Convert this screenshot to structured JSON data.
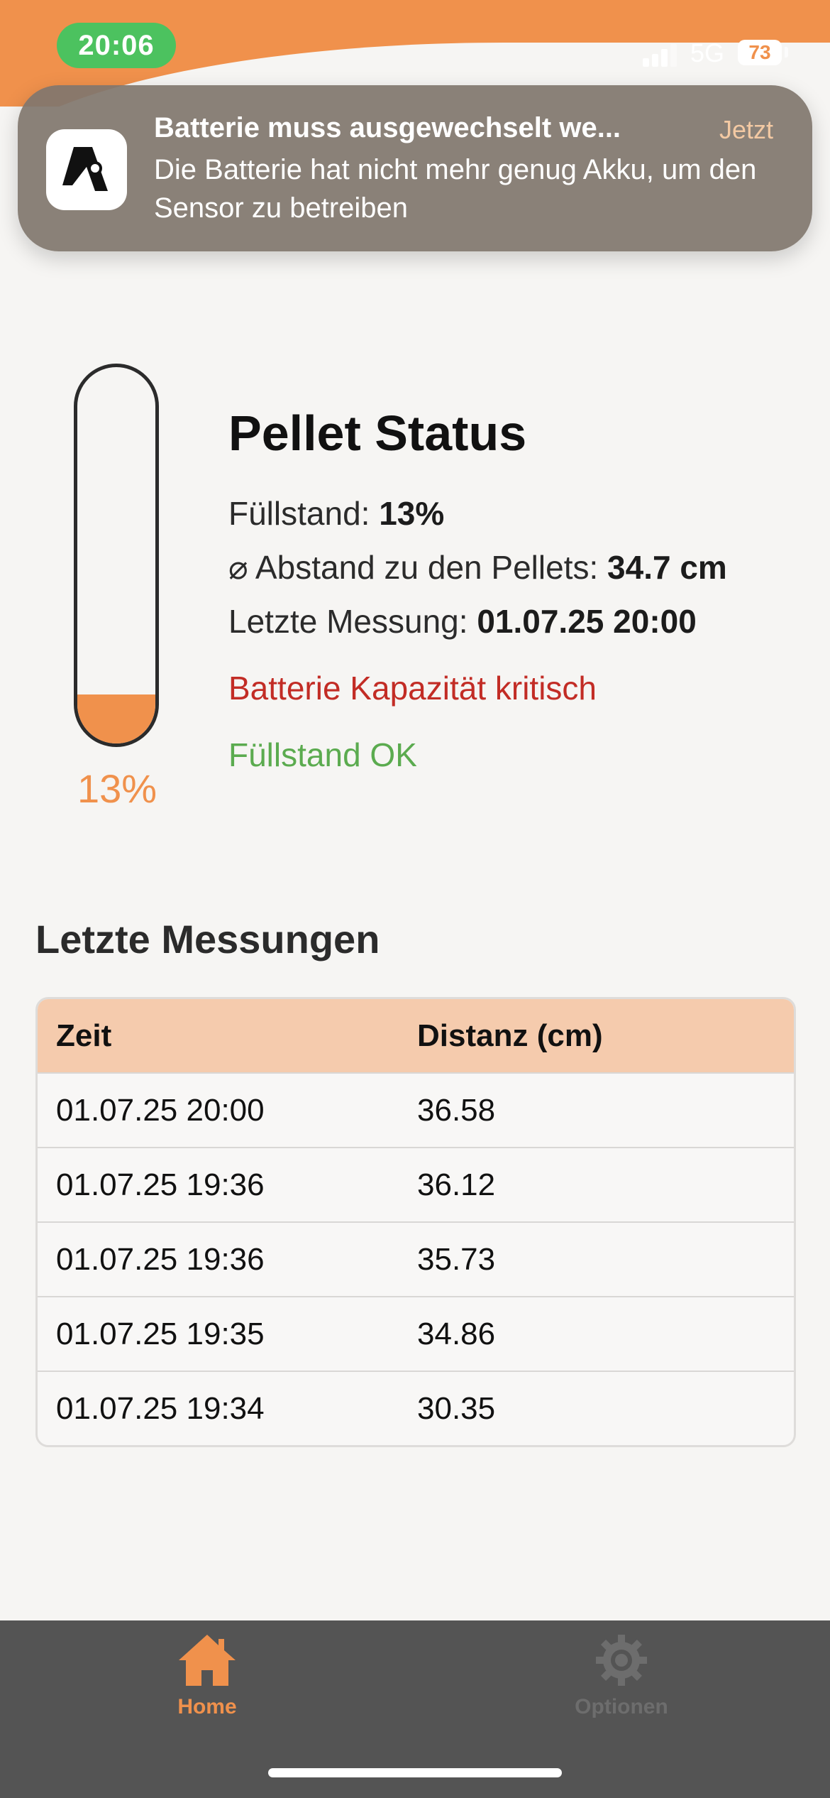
{
  "status_bar": {
    "time": "20:06",
    "network": "5G",
    "battery": "73"
  },
  "notification": {
    "app_icon": "sensor-logo-icon",
    "title": "Batterie muss ausgewechselt we...",
    "time": "Jetzt",
    "body": "Die Batterie hat nicht mehr genug Akku, um den Sensor zu betreiben"
  },
  "gauge": {
    "fill_percent": 13,
    "label": "13%",
    "fill_color": "#f0914c"
  },
  "status": {
    "title": "Pellet Status",
    "fill_label": "Füllstand: ",
    "fill_value": "13%",
    "distance_label": "⌀ Abstand zu den Pellets: ",
    "distance_value": "34.7 cm",
    "last_label": "Letzte Messung: ",
    "last_value": "01.07.25 20:00",
    "battery_warning": "Batterie Kapazität kritisch",
    "fill_ok": "Füllstand OK"
  },
  "measurements": {
    "title": "Letzte Messungen",
    "columns": [
      "Zeit",
      "Distanz (cm)"
    ],
    "rows": [
      [
        "01.07.25 20:00",
        "36.58"
      ],
      [
        "01.07.25 19:36",
        "36.12"
      ],
      [
        "01.07.25 19:36",
        "35.73"
      ],
      [
        "01.07.25 19:35",
        "34.86"
      ],
      [
        "01.07.25 19:34",
        "30.35"
      ]
    ]
  },
  "tabbar": {
    "home": {
      "label": "Home",
      "icon": "home-icon",
      "active": true
    },
    "options": {
      "label": "Optionen",
      "icon": "gear-icon",
      "active": false
    }
  },
  "colors": {
    "accent": "#f0914c",
    "warning": "#c22c25",
    "ok": "#5bab4f",
    "table_header": "#f5cbad",
    "tabbar_bg": "#545454",
    "tab_inactive": "#6d6d6d"
  }
}
